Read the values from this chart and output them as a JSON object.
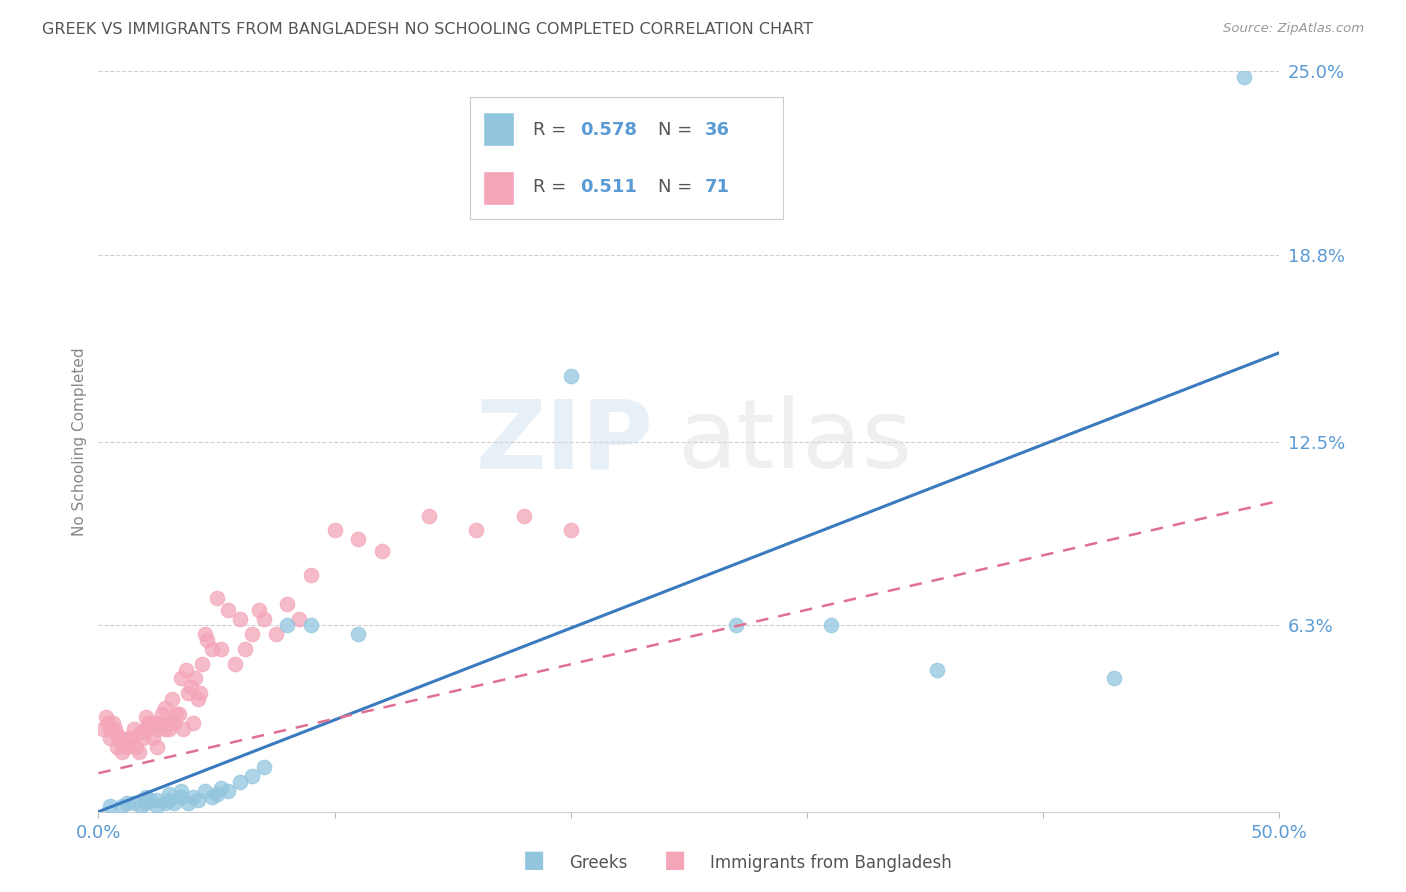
{
  "title": "GREEK VS IMMIGRANTS FROM BANGLADESH NO SCHOOLING COMPLETED CORRELATION CHART",
  "source": "Source: ZipAtlas.com",
  "ylabel": "No Schooling Completed",
  "xlim": [
    0.0,
    0.5
  ],
  "ylim": [
    0.0,
    0.25
  ],
  "ytick_labels_right": [
    "25.0%",
    "18.8%",
    "12.5%",
    "6.3%"
  ],
  "ytick_vals_right": [
    0.25,
    0.188,
    0.125,
    0.063
  ],
  "legend_blue_r": "0.578",
  "legend_blue_n": "36",
  "legend_pink_r": "0.511",
  "legend_pink_n": "71",
  "blue_color": "#92c5de",
  "pink_color": "#f4a5b8",
  "blue_line_color": "#3a7abf",
  "pink_line_color": "#e07090",
  "title_color": "#555555",
  "tick_color": "#5b9bd5",
  "grid_color": "#d0d0d0",
  "blue_line_x": [
    0.0,
    0.5
  ],
  "blue_line_y": [
    0.0,
    0.155
  ],
  "pink_line_x": [
    0.0,
    0.5
  ],
  "pink_line_y": [
    0.013,
    0.105
  ],
  "blue_scatter_x": [
    0.005,
    0.01,
    0.012,
    0.015,
    0.018,
    0.02,
    0.02,
    0.022,
    0.025,
    0.025,
    0.028,
    0.03,
    0.03,
    0.032,
    0.035,
    0.035,
    0.038,
    0.04,
    0.042,
    0.045,
    0.048,
    0.05,
    0.052,
    0.055,
    0.06,
    0.065,
    0.07,
    0.08,
    0.09,
    0.11,
    0.2,
    0.27,
    0.31,
    0.355,
    0.43,
    0.485
  ],
  "blue_scatter_y": [
    0.002,
    0.002,
    0.003,
    0.003,
    0.002,
    0.003,
    0.005,
    0.004,
    0.002,
    0.004,
    0.003,
    0.004,
    0.006,
    0.003,
    0.005,
    0.007,
    0.003,
    0.005,
    0.004,
    0.007,
    0.005,
    0.006,
    0.008,
    0.007,
    0.01,
    0.012,
    0.015,
    0.063,
    0.063,
    0.06,
    0.147,
    0.063,
    0.063,
    0.048,
    0.045,
    0.248
  ],
  "pink_scatter_x": [
    0.002,
    0.003,
    0.004,
    0.005,
    0.005,
    0.006,
    0.007,
    0.008,
    0.008,
    0.009,
    0.01,
    0.01,
    0.012,
    0.013,
    0.014,
    0.015,
    0.016,
    0.017,
    0.018,
    0.019,
    0.02,
    0.02,
    0.021,
    0.022,
    0.023,
    0.024,
    0.025,
    0.025,
    0.026,
    0.027,
    0.028,
    0.028,
    0.03,
    0.03,
    0.031,
    0.032,
    0.033,
    0.034,
    0.035,
    0.036,
    0.037,
    0.038,
    0.039,
    0.04,
    0.041,
    0.042,
    0.043,
    0.044,
    0.045,
    0.046,
    0.048,
    0.05,
    0.052,
    0.055,
    0.058,
    0.06,
    0.062,
    0.065,
    0.068,
    0.07,
    0.075,
    0.08,
    0.085,
    0.09,
    0.1,
    0.11,
    0.12,
    0.14,
    0.16,
    0.18,
    0.2
  ],
  "pink_scatter_y": [
    0.028,
    0.032,
    0.03,
    0.028,
    0.025,
    0.03,
    0.028,
    0.026,
    0.022,
    0.025,
    0.02,
    0.023,
    0.022,
    0.025,
    0.025,
    0.028,
    0.022,
    0.02,
    0.027,
    0.025,
    0.028,
    0.032,
    0.03,
    0.03,
    0.025,
    0.03,
    0.022,
    0.028,
    0.03,
    0.033,
    0.028,
    0.035,
    0.03,
    0.028,
    0.038,
    0.03,
    0.033,
    0.033,
    0.045,
    0.028,
    0.048,
    0.04,
    0.042,
    0.03,
    0.045,
    0.038,
    0.04,
    0.05,
    0.06,
    0.058,
    0.055,
    0.072,
    0.055,
    0.068,
    0.05,
    0.065,
    0.055,
    0.06,
    0.068,
    0.065,
    0.06,
    0.07,
    0.065,
    0.08,
    0.095,
    0.092,
    0.088,
    0.1,
    0.095,
    0.1,
    0.095
  ]
}
